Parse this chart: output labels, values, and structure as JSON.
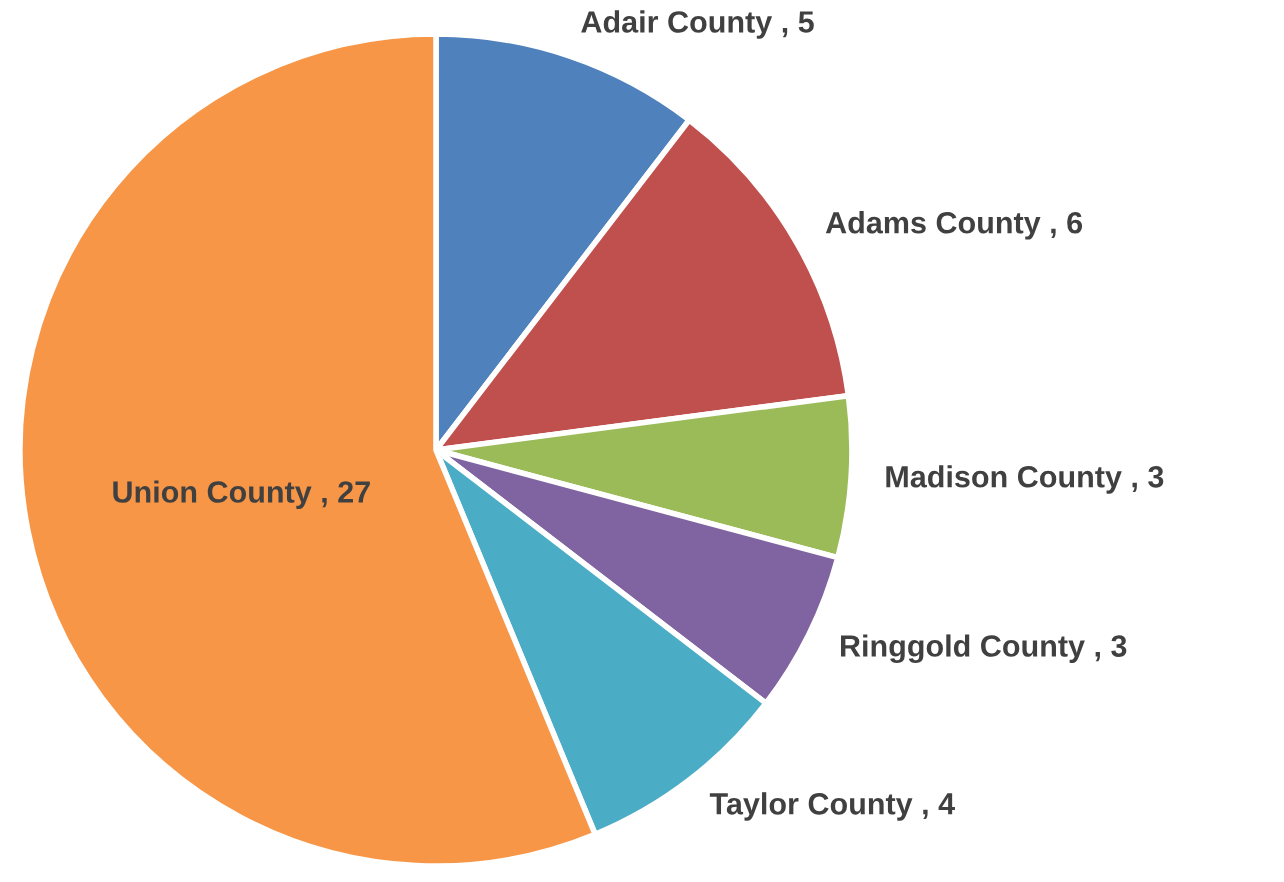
{
  "chart_data": {
    "type": "pie",
    "categories": [
      "Adair County",
      "Adams County",
      "Madison County",
      "Ringgold County",
      "Taylor County",
      "Union County"
    ],
    "values": [
      5,
      6,
      3,
      3,
      4,
      27
    ],
    "colors": [
      "#4f81bd",
      "#c0504d",
      "#9bbb59",
      "#8064a2",
      "#4bacc6",
      "#f79646"
    ],
    "value_labels": [
      ", 5",
      ", 6",
      ", 3",
      ", 3",
      ", 4",
      ", 27"
    ],
    "legend": false
  }
}
